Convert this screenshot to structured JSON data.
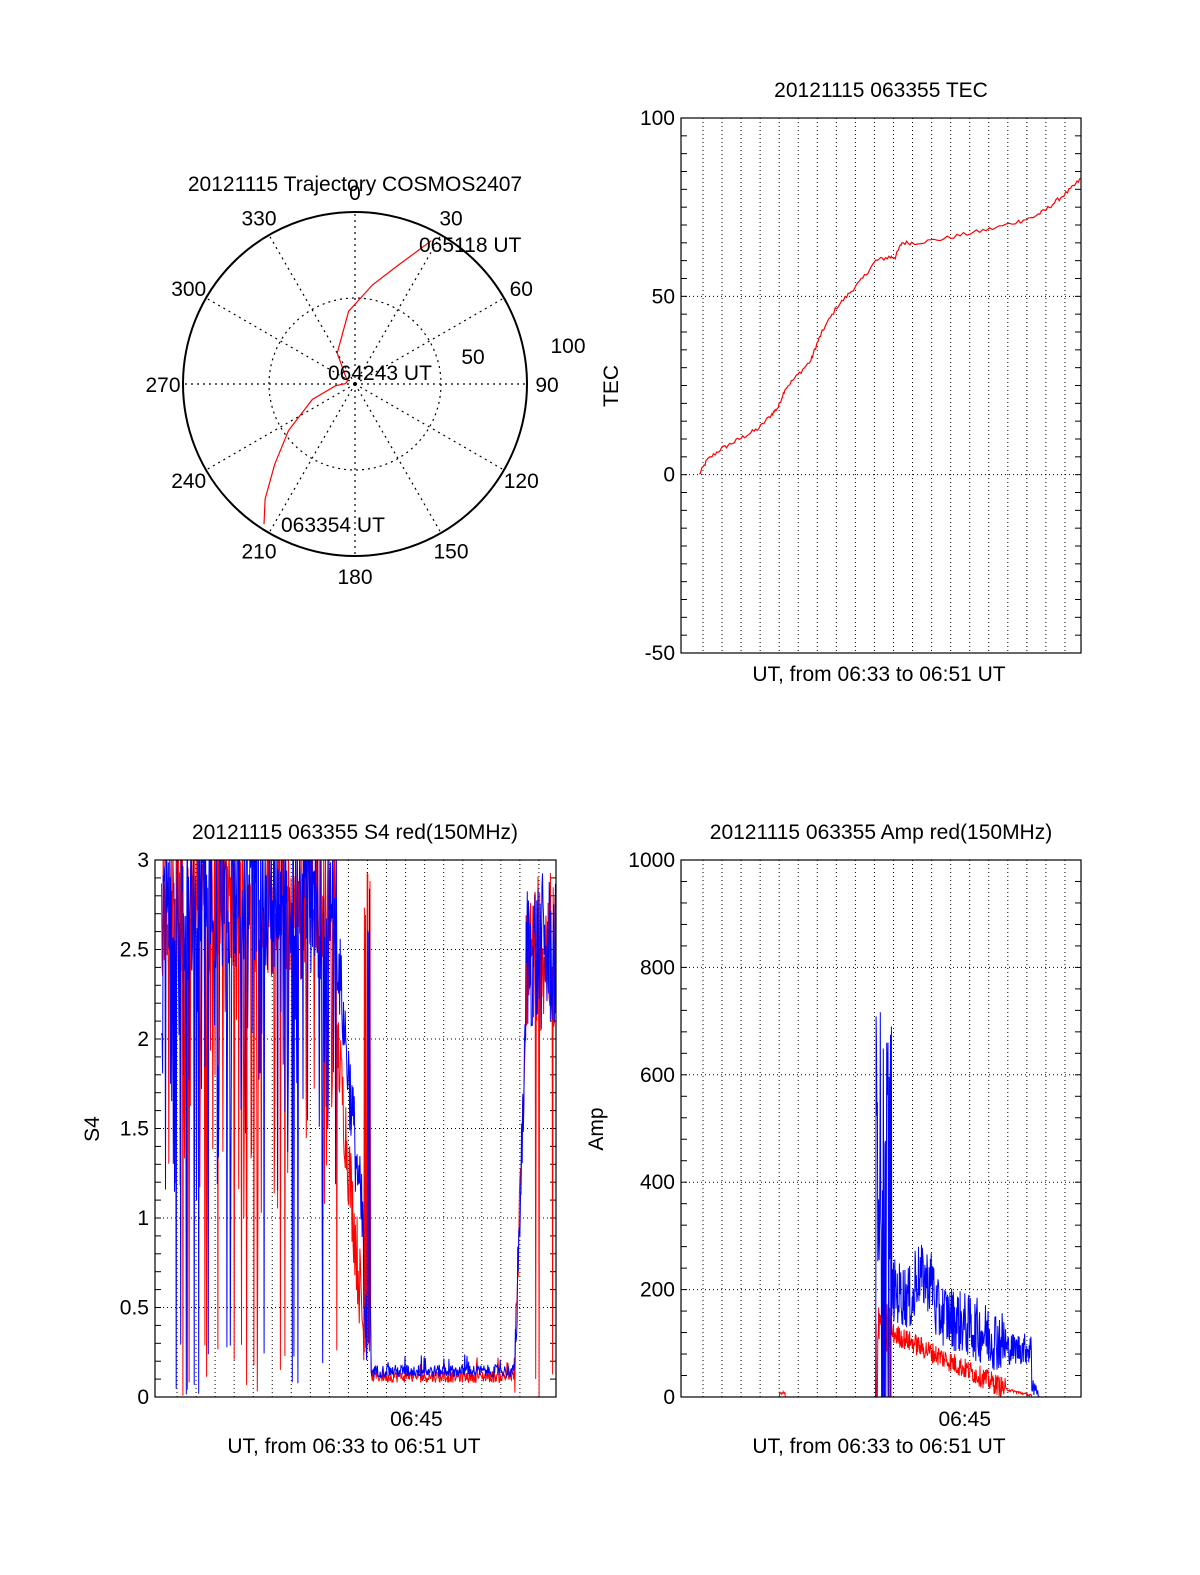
{
  "chart_data": [
    {
      "id": "polar",
      "type": "polar-trajectory",
      "title": "20121115 Trajectory COSMOS2407",
      "azimuth_labels": [
        "0",
        "30",
        "60",
        "90",
        "120",
        "150",
        "180",
        "210",
        "240",
        "270",
        "300",
        "330"
      ],
      "radial_labels": [
        "50",
        "100"
      ],
      "elevation_ticks": [
        50,
        100
      ],
      "track": {
        "color": "#ff0000",
        "points": [
          [
            213,
            103
          ],
          [
            218,
            90
          ],
          [
            225,
            70
          ],
          [
            235,
            50
          ],
          [
            250,
            28
          ],
          [
            265,
            12
          ],
          [
            272,
            6
          ],
          [
            290,
            5
          ],
          [
            330,
            22
          ],
          [
            355,
            45
          ],
          [
            10,
            62
          ],
          [
            20,
            78
          ],
          [
            25,
            90
          ],
          [
            28,
            100
          ]
        ]
      },
      "annotations": [
        {
          "label": "065118 UT",
          "az": 30,
          "r": 90
        },
        {
          "label": "064243 UT",
          "az": 270,
          "r": 6
        },
        {
          "label": "063354 UT",
          "az": 213,
          "r": 103
        }
      ]
    },
    {
      "id": "tec",
      "type": "line",
      "title": "20121115 063355 TEC",
      "ylabel": "TEC",
      "xlabel": "UT, from 06:33 to 06:51 UT",
      "xlim": [
        6.55,
        6.858
      ],
      "ylim": [
        -50,
        100
      ],
      "yticks": [
        "-50",
        "0",
        "50",
        "100"
      ],
      "xticks": [],
      "series": [
        {
          "color": "#ff0000",
          "points": [
            [
              6.564,
              0
            ],
            [
              6.57,
              4
            ],
            [
              6.58,
              7
            ],
            [
              6.59,
              9
            ],
            [
              6.6,
              11
            ],
            [
              6.61,
              13
            ],
            [
              6.62,
              17
            ],
            [
              6.625,
              19
            ],
            [
              6.63,
              24
            ],
            [
              6.64,
              28
            ],
            [
              6.65,
              32
            ],
            [
              6.655,
              37
            ],
            [
              6.66,
              41
            ],
            [
              6.67,
              47
            ],
            [
              6.68,
              51
            ],
            [
              6.69,
              55
            ],
            [
              6.7,
              60
            ],
            [
              6.71,
              61
            ],
            [
              6.715,
              61
            ],
            [
              6.72,
              65
            ],
            [
              6.73,
              65
            ],
            [
              6.75,
              66
            ],
            [
              6.77,
              67.5
            ],
            [
              6.79,
              69
            ],
            [
              6.81,
              71
            ],
            [
              6.82,
              72
            ],
            [
              6.83,
              74
            ],
            [
              6.84,
              77
            ],
            [
              6.85,
              80
            ],
            [
              6.858,
              83
            ]
          ]
        }
      ]
    },
    {
      "id": "s4",
      "type": "line",
      "title": "20121115 063355 S4 red(150MHz)",
      "ylabel": "S4",
      "xlabel": "UT, from 06:33 to 06:51 UT",
      "xlim": [
        6.55,
        6.858
      ],
      "ylim": [
        0,
        3
      ],
      "yticks": [
        "0",
        "0.5",
        "1",
        "1.5",
        "2",
        "2.5",
        "3"
      ],
      "xticks": [
        {
          "label": "06:45",
          "value": 6.75
        }
      ],
      "series": [
        {
          "name": "",
          "color": "#ff0000",
          "x0": 6.555,
          "x1": 6.858
        },
        {
          "name": "",
          "color": "#0000ff",
          "x0": 6.555,
          "x1": 6.858
        }
      ]
    },
    {
      "id": "amp",
      "type": "line",
      "title": "20121115 063355 Amp red(150MHz)",
      "ylabel": "Amp",
      "xlabel": "UT, from 06:33 to 06:51 UT",
      "xlim": [
        6.55,
        6.858
      ],
      "ylim": [
        0,
        1000
      ],
      "yticks": [
        "0",
        "200",
        "400",
        "600",
        "800",
        "1000"
      ],
      "xticks": [
        {
          "label": "06:45",
          "value": 6.75
        }
      ],
      "series": [
        {
          "name": "",
          "color": "#ff0000",
          "x0": 6.564,
          "x1": 6.858
        },
        {
          "name": "",
          "color": "#0000ff",
          "x0": 6.564,
          "x1": 6.858
        }
      ]
    }
  ]
}
